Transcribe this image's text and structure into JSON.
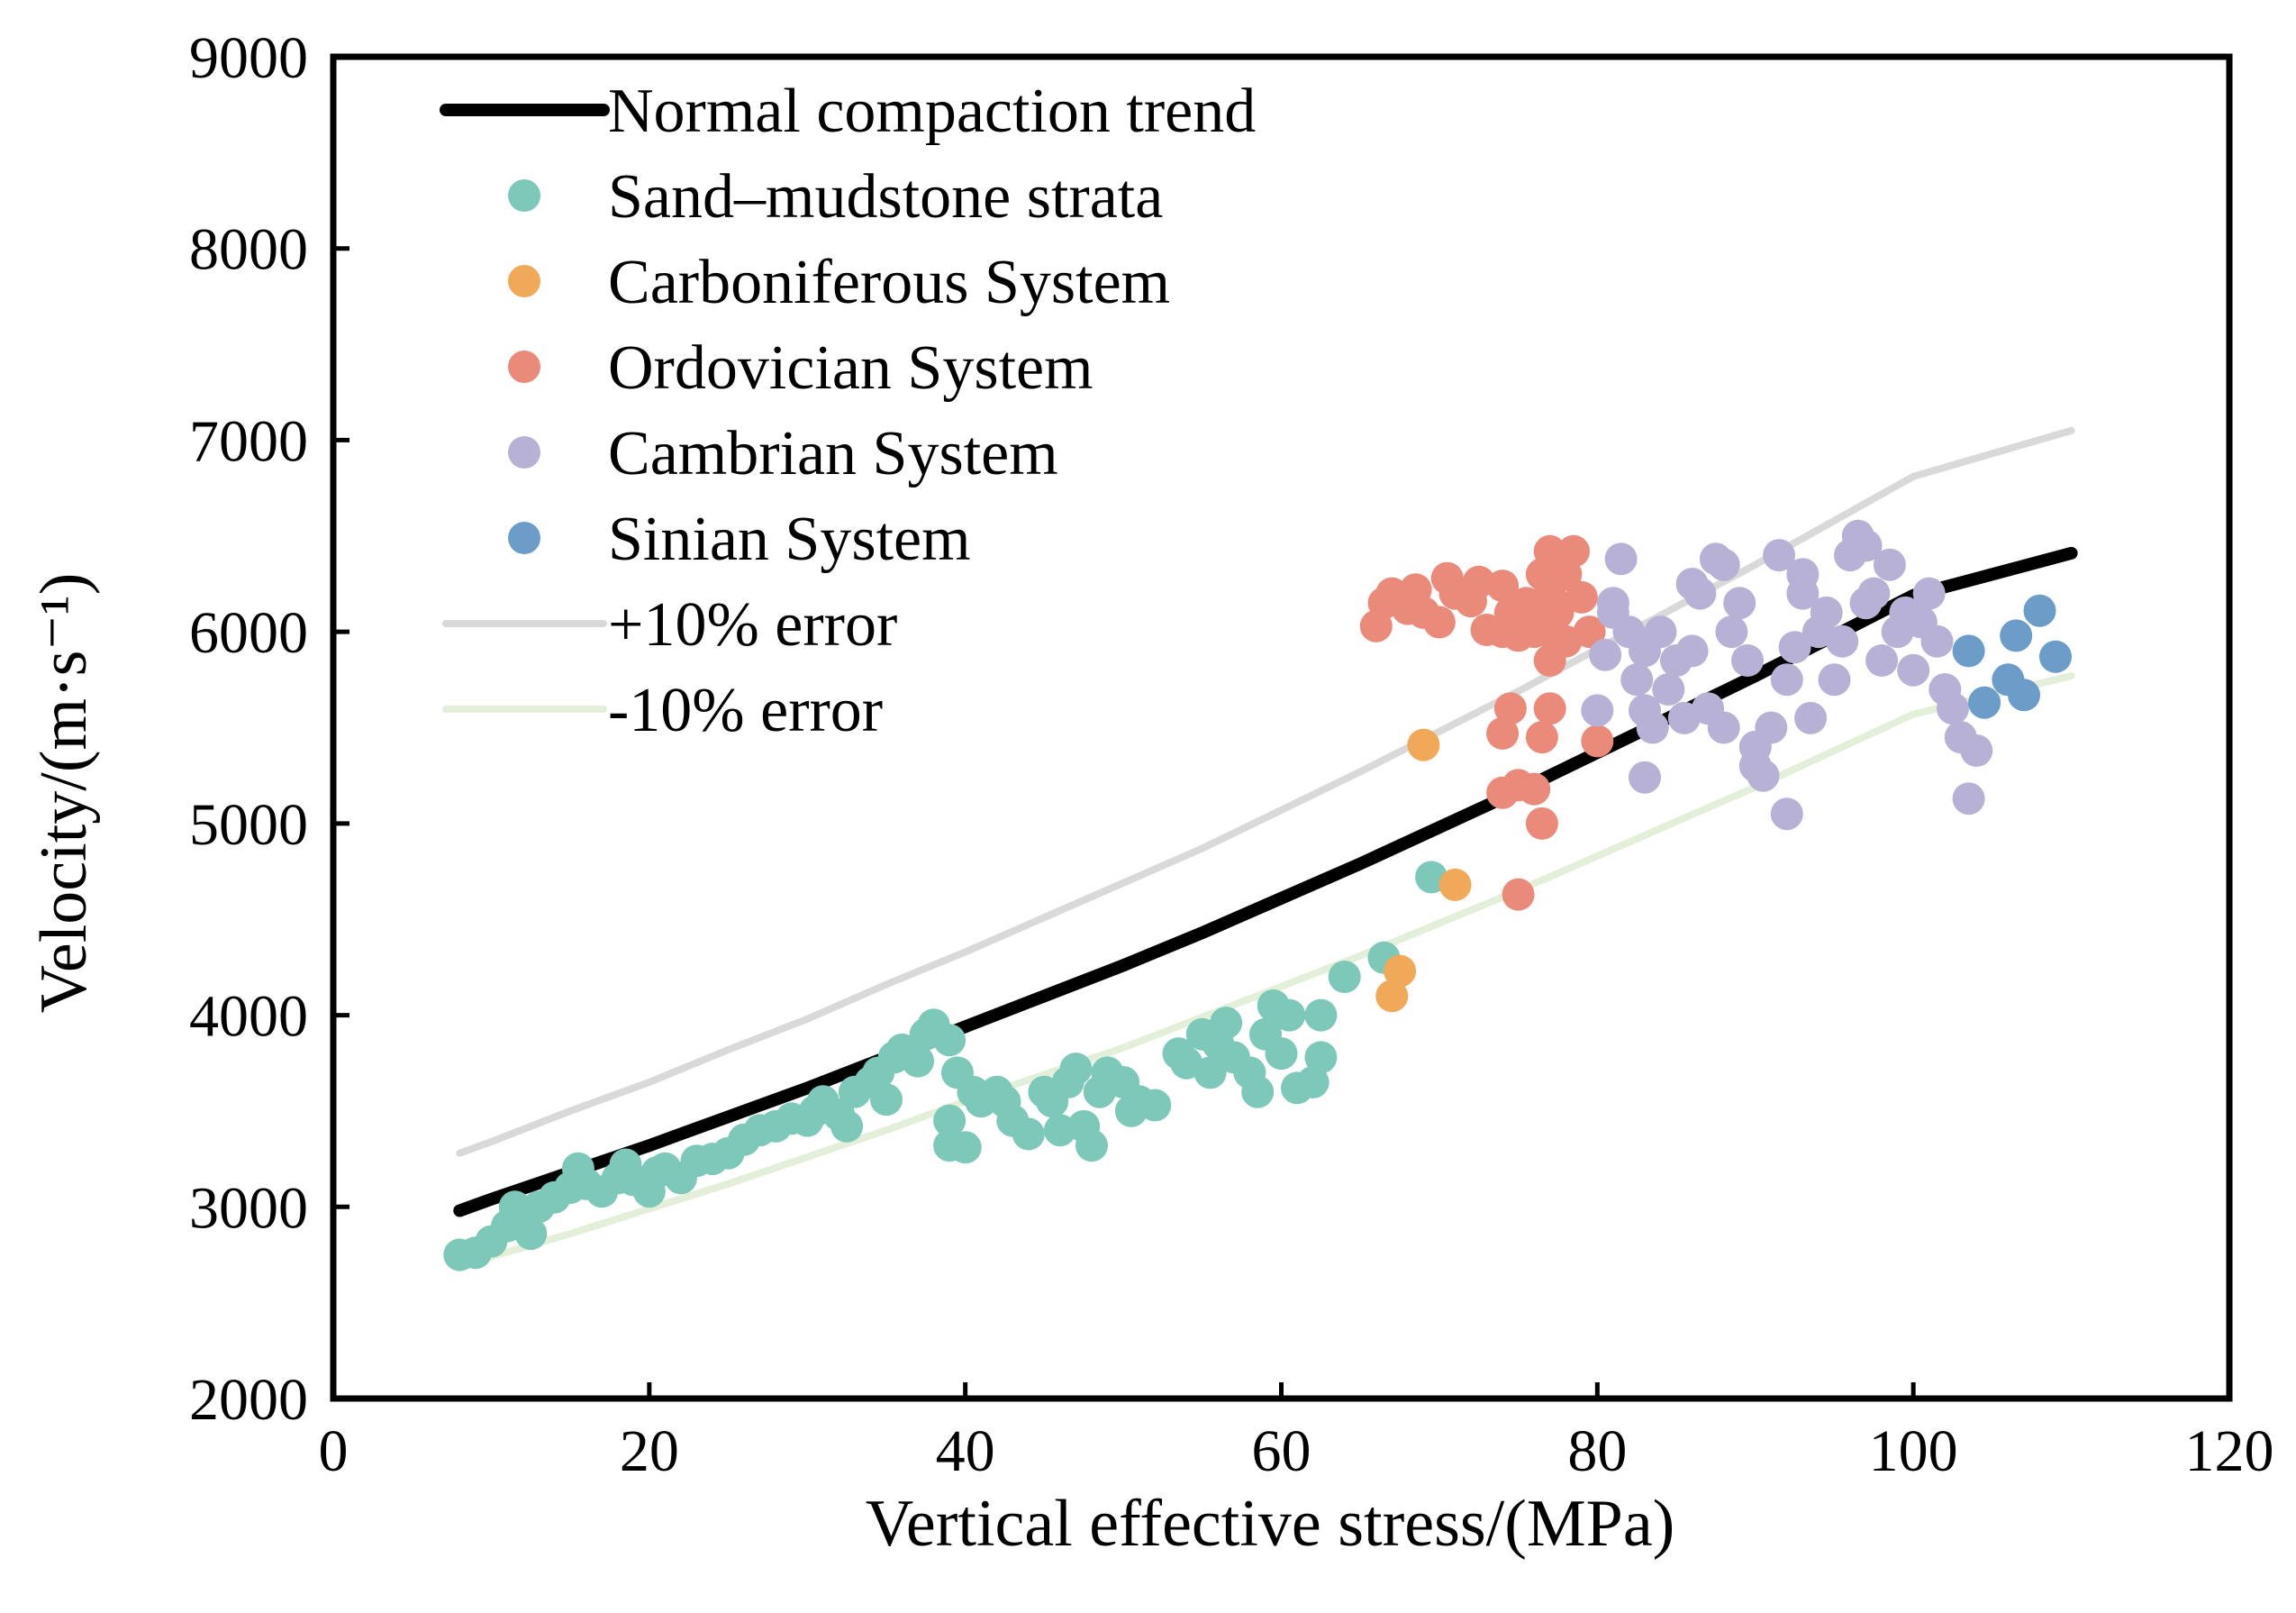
{
  "chart_data": {
    "type": "scatter",
    "xlabel": "Vertical effective stress/(MPa)",
    "ylabel": "Velocity/(m·s⁻¹)",
    "xlim": [
      0,
      120
    ],
    "ylim": [
      2000,
      9000
    ],
    "xticks": [
      "0",
      "20",
      "40",
      "60",
      "80",
      "100",
      "120"
    ],
    "yticks": [
      "2000",
      "3000",
      "4000",
      "5000",
      "6000",
      "7000",
      "8000",
      "9000"
    ],
    "grid": false,
    "legend_position": "top-left",
    "lines": [
      {
        "name": "Normal compaction trend",
        "color": "#000000",
        "kind": "thick",
        "x": [
          8,
          10,
          15,
          20,
          25,
          30,
          35,
          40,
          45,
          50,
          55,
          60,
          65,
          70,
          75,
          80,
          85,
          90,
          95,
          100,
          105,
          110
        ],
        "y": [
          2980,
          3040,
          3180,
          3320,
          3470,
          3620,
          3780,
          3940,
          4100,
          4260,
          4430,
          4610,
          4790,
          4980,
          5170,
          5370,
          5570,
          5770,
          5980,
          6190,
          6300,
          6410
        ]
      },
      {
        "name": "+10% error",
        "color": "#d9d9d9",
        "kind": "thin",
        "x": [
          8,
          10,
          15,
          20,
          25,
          30,
          35,
          40,
          45,
          50,
          55,
          60,
          65,
          70,
          75,
          80,
          85,
          90,
          95,
          100,
          105,
          110
        ],
        "y": [
          3280,
          3340,
          3500,
          3650,
          3820,
          3980,
          4160,
          4330,
          4510,
          4690,
          4870,
          5070,
          5270,
          5480,
          5690,
          5910,
          6130,
          6350,
          6580,
          6810,
          6930,
          7050
        ]
      },
      {
        "name": "-10%  error",
        "color": "#e3efd8",
        "kind": "thin",
        "x": [
          8,
          10,
          15,
          20,
          25,
          30,
          35,
          40,
          45,
          50,
          55,
          60,
          65,
          70,
          75,
          80,
          85,
          90,
          95,
          100,
          105,
          110
        ],
        "y": [
          2680,
          2740,
          2860,
          2990,
          3120,
          3260,
          3400,
          3550,
          3690,
          3830,
          3990,
          4150,
          4310,
          4480,
          4650,
          4830,
          5010,
          5190,
          5380,
          5570,
          5670,
          5770
        ]
      }
    ],
    "series": [
      {
        "name": "Sand–mudstone strata",
        "color": "#7dc8b9",
        "points": [
          [
            8,
            2750
          ],
          [
            9,
            2760
          ],
          [
            10,
            2820
          ],
          [
            11,
            2900
          ],
          [
            11.5,
            3000
          ],
          [
            12,
            2950
          ],
          [
            12.5,
            2860
          ],
          [
            13,
            3000
          ],
          [
            14,
            3050
          ],
          [
            15,
            3100
          ],
          [
            15.5,
            3200
          ],
          [
            16,
            3120
          ],
          [
            17,
            3080
          ],
          [
            18,
            3150
          ],
          [
            18.5,
            3220
          ],
          [
            19,
            3140
          ],
          [
            20,
            3080
          ],
          [
            20.5,
            3180
          ],
          [
            21,
            3200
          ],
          [
            22,
            3150
          ],
          [
            23,
            3240
          ],
          [
            24,
            3250
          ],
          [
            25,
            3280
          ],
          [
            26,
            3350
          ],
          [
            27,
            3400
          ],
          [
            28,
            3420
          ],
          [
            29,
            3460
          ],
          [
            30,
            3450
          ],
          [
            30.5,
            3500
          ],
          [
            31,
            3550
          ],
          [
            32,
            3480
          ],
          [
            32.5,
            3420
          ],
          [
            33,
            3600
          ],
          [
            34,
            3650
          ],
          [
            34.5,
            3700
          ],
          [
            35,
            3560
          ],
          [
            35.5,
            3780
          ],
          [
            36,
            3820
          ],
          [
            37,
            3760
          ],
          [
            37.5,
            3900
          ],
          [
            38,
            3950
          ],
          [
            39,
            3870
          ],
          [
            39.5,
            3700
          ],
          [
            39,
            3450
          ],
          [
            39,
            3320
          ],
          [
            40,
            3310
          ],
          [
            40.5,
            3600
          ],
          [
            41,
            3550
          ],
          [
            42,
            3600
          ],
          [
            42.5,
            3550
          ],
          [
            43,
            3450
          ],
          [
            44,
            3380
          ],
          [
            45,
            3600
          ],
          [
            45.5,
            3550
          ],
          [
            46,
            3400
          ],
          [
            46.5,
            3650
          ],
          [
            47,
            3720
          ],
          [
            47.5,
            3420
          ],
          [
            48,
            3320
          ],
          [
            48.5,
            3600
          ],
          [
            49,
            3700
          ],
          [
            50,
            3650
          ],
          [
            50.5,
            3500
          ],
          [
            51,
            3550
          ],
          [
            52,
            3530
          ],
          [
            53.5,
            3800
          ],
          [
            54,
            3750
          ],
          [
            55,
            3900
          ],
          [
            55.5,
            3700
          ],
          [
            56,
            3850
          ],
          [
            56.5,
            3960
          ],
          [
            57,
            3780
          ],
          [
            58,
            3700
          ],
          [
            58.5,
            3600
          ],
          [
            59,
            3900
          ],
          [
            59.5,
            4050
          ],
          [
            60,
            3800
          ],
          [
            60.5,
            4000
          ],
          [
            61,
            3620
          ],
          [
            62,
            3650
          ],
          [
            62.5,
            3780
          ],
          [
            62.5,
            4000
          ],
          [
            64,
            4200
          ],
          [
            66.5,
            4300
          ],
          [
            69.5,
            4720
          ]
        ]
      },
      {
        "name": "Carboniferous System",
        "color": "#f0a959",
        "points": [
          [
            67,
            4100
          ],
          [
            67.5,
            4230
          ],
          [
            69,
            5410
          ],
          [
            71,
            4680
          ]
        ]
      },
      {
        "name": "Ordovician System",
        "color": "#ea8a7b",
        "points": [
          [
            66,
            6030
          ],
          [
            66.5,
            6150
          ],
          [
            67,
            6200
          ],
          [
            68,
            6120
          ],
          [
            68.5,
            6220
          ],
          [
            69,
            6100
          ],
          [
            70,
            6050
          ],
          [
            70.5,
            6280
          ],
          [
            71,
            6200
          ],
          [
            72,
            6160
          ],
          [
            72.5,
            6260
          ],
          [
            73,
            6010
          ],
          [
            74,
            6240
          ],
          [
            74,
            6000
          ],
          [
            74.5,
            6100
          ],
          [
            75,
            5980
          ],
          [
            75.5,
            6150
          ],
          [
            76,
            6000
          ],
          [
            76.5,
            6300
          ],
          [
            76.5,
            6050
          ],
          [
            77,
            6420
          ],
          [
            77,
            6200
          ],
          [
            77,
            6000
          ],
          [
            77,
            5850
          ],
          [
            77.5,
            6100
          ],
          [
            78,
            6300
          ],
          [
            78,
            5950
          ],
          [
            78.5,
            6420
          ],
          [
            79,
            6180
          ],
          [
            79.5,
            6000
          ],
          [
            74,
            5470
          ],
          [
            74.5,
            5600
          ],
          [
            76.5,
            5450
          ],
          [
            77,
            5600
          ],
          [
            74,
            5160
          ],
          [
            75,
            5200
          ],
          [
            76,
            5180
          ],
          [
            76.5,
            5000
          ],
          [
            75,
            4630
          ],
          [
            80,
            5430
          ]
        ]
      },
      {
        "name": "Cambrian System",
        "color": "#b7b2d5",
        "points": [
          [
            80,
            5590
          ],
          [
            80.5,
            5880
          ],
          [
            81,
            6100
          ],
          [
            81,
            6150
          ],
          [
            81.5,
            6380
          ],
          [
            82,
            6000
          ],
          [
            82.5,
            5750
          ],
          [
            83,
            5900
          ],
          [
            83,
            5590
          ],
          [
            83,
            5240
          ],
          [
            83.5,
            5500
          ],
          [
            84,
            6000
          ],
          [
            84.5,
            5700
          ],
          [
            85,
            5850
          ],
          [
            85.5,
            5550
          ],
          [
            86,
            6250
          ],
          [
            86,
            5900
          ],
          [
            86.5,
            6200
          ],
          [
            87,
            5600
          ],
          [
            87.5,
            6380
          ],
          [
            88,
            6350
          ],
          [
            88,
            5500
          ],
          [
            88.5,
            6000
          ],
          [
            89,
            6150
          ],
          [
            89.5,
            5850
          ],
          [
            90,
            5300
          ],
          [
            90,
            5400
          ],
          [
            90.5,
            5250
          ],
          [
            91,
            5500
          ],
          [
            91.5,
            6400
          ],
          [
            92,
            5750
          ],
          [
            92,
            5050
          ],
          [
            92.5,
            5920
          ],
          [
            93,
            6300
          ],
          [
            93,
            6200
          ],
          [
            93.5,
            5550
          ],
          [
            94,
            6000
          ],
          [
            94.5,
            6100
          ],
          [
            95,
            5750
          ],
          [
            95.5,
            5950
          ],
          [
            96,
            6400
          ],
          [
            96.5,
            6500
          ],
          [
            97,
            6450
          ],
          [
            97,
            6150
          ],
          [
            97.5,
            6200
          ],
          [
            98,
            5850
          ],
          [
            98.5,
            6350
          ],
          [
            99,
            6000
          ],
          [
            99.5,
            6100
          ],
          [
            100,
            5800
          ],
          [
            100.5,
            6050
          ],
          [
            101,
            6200
          ],
          [
            101.5,
            5950
          ],
          [
            102,
            5700
          ],
          [
            102.5,
            5600
          ],
          [
            103,
            5450
          ],
          [
            103.5,
            5130
          ],
          [
            104,
            5380
          ]
        ]
      },
      {
        "name": "Sinian System",
        "color": "#6c9dc8",
        "points": [
          [
            103.5,
            5900
          ],
          [
            104.5,
            5630
          ],
          [
            106,
            5750
          ],
          [
            106.5,
            5980
          ],
          [
            107,
            5670
          ],
          [
            108,
            6110
          ],
          [
            109,
            5870
          ]
        ]
      }
    ],
    "legend": [
      {
        "label": "Normal compaction trend",
        "kind": "line",
        "color": "#000000"
      },
      {
        "label": "Sand–mudstone strata",
        "kind": "marker",
        "color": "#7dc8b9"
      },
      {
        "label": "Carboniferous System",
        "kind": "marker",
        "color": "#f0a959"
      },
      {
        "label": "Ordovician System",
        "kind": "marker",
        "color": "#ea8a7b"
      },
      {
        "label": "Cambrian System",
        "kind": "marker",
        "color": "#b7b2d5"
      },
      {
        "label": "Sinian System",
        "kind": "marker",
        "color": "#6c9dc8"
      },
      {
        "label": "+10% error",
        "kind": "line",
        "color": "#d9d9d9"
      },
      {
        "label": "-10%  error",
        "kind": "line",
        "color": "#e3efd8"
      }
    ]
  }
}
